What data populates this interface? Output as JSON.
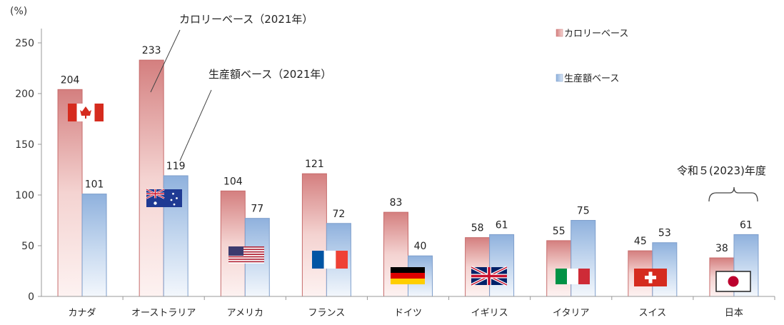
{
  "chart_data": {
    "type": "bar",
    "ylabel": "(%)",
    "ylim": [
      0,
      250
    ],
    "yticks": [
      0,
      50,
      100,
      150,
      200,
      250
    ],
    "categories": [
      "カナダ",
      "オーストラリア",
      "アメリカ",
      "フランス",
      "ドイツ",
      "イギリス",
      "イタリア",
      "スイス",
      "日本"
    ],
    "series": [
      {
        "name": "カロリーベース",
        "values": [
          204,
          233,
          104,
          121,
          83,
          58,
          55,
          45,
          38
        ],
        "color": "#d98c8c"
      },
      {
        "name": "生産額ベース",
        "values": [
          101,
          119,
          77,
          72,
          40,
          61,
          75,
          53,
          61
        ],
        "color": "#8fb2de"
      }
    ],
    "annotations": {
      "calorie_note": "カロリーベース（2021年）",
      "production_note": "生産額ベース（2021年）",
      "japan_note": "令和５(2023)年度"
    },
    "flags": [
      "canada-flag",
      "australia-flag",
      "usa-flag",
      "france-flag",
      "germany-flag",
      "uk-flag",
      "italy-flag",
      "switzerland-flag",
      "japan-flag"
    ],
    "legend_position": "top-right"
  }
}
